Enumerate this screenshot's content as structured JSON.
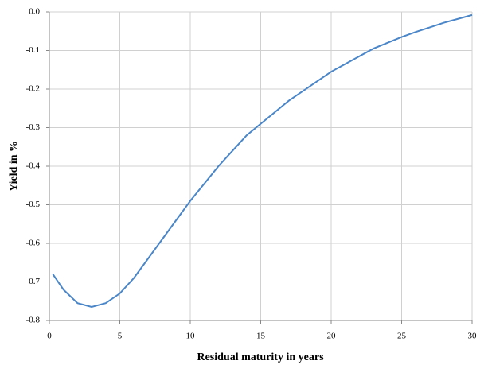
{
  "chart_data": {
    "type": "line",
    "x_label": "Residual maturity in years",
    "y_label": "Yield in %",
    "x": [
      0.25,
      1,
      2,
      3,
      4,
      5,
      6,
      7,
      8,
      9,
      10,
      11,
      12,
      13,
      14,
      15,
      16,
      17,
      18,
      19,
      20,
      21,
      22,
      23,
      24,
      25,
      26,
      27,
      28,
      29,
      30
    ],
    "series": [
      {
        "color": "#4a86c8",
        "values": [
          -0.68,
          -0.72,
          -0.755,
          -0.765,
          -0.755,
          -0.73,
          -0.69,
          -0.64,
          -0.59,
          -0.54,
          -0.49,
          -0.445,
          -0.4,
          -0.36,
          -0.32,
          -0.29,
          -0.26,
          -0.23,
          -0.205,
          -0.18,
          -0.155,
          -0.135,
          -0.115,
          -0.095,
          -0.08,
          -0.065,
          -0.052,
          -0.04,
          -0.028,
          -0.018,
          -0.008
        ]
      }
    ],
    "xlim": [
      0,
      30
    ],
    "xticks": [
      0,
      5,
      10,
      15,
      20,
      25,
      30
    ],
    "ylim": [
      -0.8,
      0
    ],
    "yticks": [
      {
        "value": 0,
        "label": "0.0"
      },
      -0.1,
      -0.2,
      -0.3,
      -0.4,
      -0.5,
      -0.6,
      -0.7,
      -0.8
    ],
    "grid": true
  }
}
